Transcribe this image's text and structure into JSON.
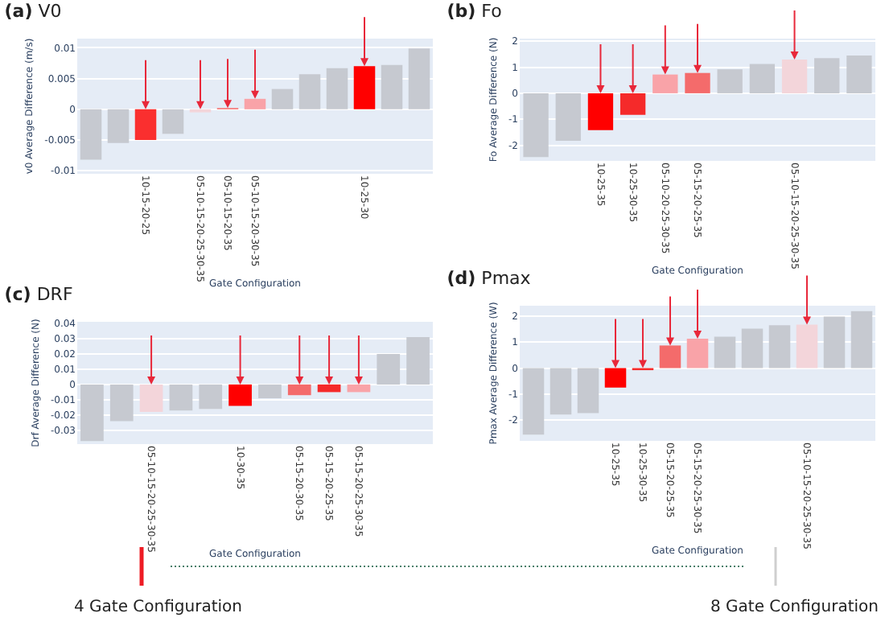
{
  "chart_data": [
    {
      "type": "bar",
      "title": "(a) V0",
      "xlabel": "Gate Configuration",
      "ylabel": "v0 Average Difference (m/s)",
      "grid": true,
      "categories": [
        null,
        null,
        "10-15-20-25",
        null,
        "05-10-15-20-25-30-35",
        "05-10-15-20-35",
        "05-10-15-20-30-35",
        null,
        null,
        null,
        "10-25-30",
        null,
        null
      ],
      "values": [
        -0.0082,
        -0.0055,
        -0.005,
        -0.004,
        -0.0005,
        0.0002,
        0.0017,
        0.0033,
        0.0057,
        0.0067,
        0.007,
        0.0072,
        0.0099
      ],
      "colors": [
        "#c6c9d0",
        "#c6c9d0",
        "#fa2f2f",
        "#c6c9d0",
        "#f3d5da",
        "#f76b6b",
        "#f9a3a8",
        "#c6c9d0",
        "#c6c9d0",
        "#c6c9d0",
        "#ff0000",
        "#c6c9d0",
        "#c6c9d0"
      ],
      "ylim": [
        -0.0105,
        0.0115
      ],
      "yticks": [
        -0.01,
        -0.005,
        0,
        0.005,
        0.01
      ]
    },
    {
      "type": "bar",
      "title": "(b) Fo",
      "xlabel": "Gate Configuration",
      "ylabel": "Fo Average Difference (N)",
      "grid": true,
      "categories": [
        null,
        null,
        "10-25-35",
        "10-25-30-35",
        "05-10-20-25-30-35",
        "05-15-20-25-35",
        null,
        null,
        "05-10-15-20-25-30-35",
        null,
        null
      ],
      "values": [
        -2.45,
        -1.83,
        -1.42,
        -0.83,
        0.72,
        0.78,
        0.92,
        1.13,
        1.3,
        1.35,
        1.45
      ],
      "colors": [
        "#c6c9d0",
        "#c6c9d0",
        "#ff0000",
        "#f52a2a",
        "#f9a3a8",
        "#f46b6b",
        "#c6c9d0",
        "#c6c9d0",
        "#f3d5da",
        "#c6c9d0",
        "#c6c9d0"
      ],
      "ylim": [
        -2.6,
        2.1
      ],
      "yticks": [
        -2,
        -1,
        0,
        1,
        2
      ]
    },
    {
      "type": "bar",
      "title": "(c) DRF",
      "xlabel": "Gate Configuration",
      "ylabel": "Drf Average Difference (N)",
      "grid": true,
      "categories": [
        null,
        null,
        "05-10-15-20-25-30-35",
        null,
        null,
        "10-30-35",
        null,
        "05-15-20-30-35",
        "05-15-20-25-35",
        "05-15-20-25-30-35",
        null,
        null
      ],
      "values": [
        -0.037,
        -0.024,
        -0.018,
        -0.017,
        -0.016,
        -0.014,
        -0.009,
        -0.007,
        -0.005,
        -0.005,
        0.02,
        0.031
      ],
      "colors": [
        "#c6c9d0",
        "#c6c9d0",
        "#f3d5da",
        "#c6c9d0",
        "#c6c9d0",
        "#ff0000",
        "#c6c9d0",
        "#f46b6b",
        "#f52a2a",
        "#f9a3a8",
        "#c6c9d0",
        "#c6c9d0"
      ],
      "ylim": [
        -0.039,
        0.041
      ],
      "yticks": [
        -0.03,
        -0.02,
        -0.01,
        0,
        0.01,
        0.02,
        0.03,
        0.04
      ]
    },
    {
      "type": "bar",
      "title": "(d) Pmax",
      "xlabel": "Gate Configuration",
      "ylabel": "Pmax Average Difference (W)",
      "grid": true,
      "categories": [
        null,
        null,
        null,
        "10-25-35",
        "10-25-30-35",
        "05-15-20-25-35",
        "05-15-20-25-30-35",
        null,
        null,
        null,
        "05-10-15-20-25-30-35",
        null,
        null
      ],
      "values": [
        -2.56,
        -1.79,
        -1.73,
        -0.75,
        -0.08,
        0.87,
        1.13,
        1.21,
        1.52,
        1.65,
        1.67,
        1.98,
        2.19
      ],
      "colors": [
        "#c6c9d0",
        "#c6c9d0",
        "#c6c9d0",
        "#ff0000",
        "#f52a2a",
        "#f46b6b",
        "#f9a3a8",
        "#c6c9d0",
        "#c6c9d0",
        "#c6c9d0",
        "#f3d5da",
        "#c6c9d0",
        "#c6c9d0"
      ],
      "ylim": [
        -2.8,
        2.4
      ],
      "yticks": [
        -2,
        -1,
        0,
        1,
        2
      ]
    },
    {
      "type": "other",
      "annotations": [
        "4 Gate Configuration",
        "8 Gate Configuration"
      ]
    }
  ]
}
